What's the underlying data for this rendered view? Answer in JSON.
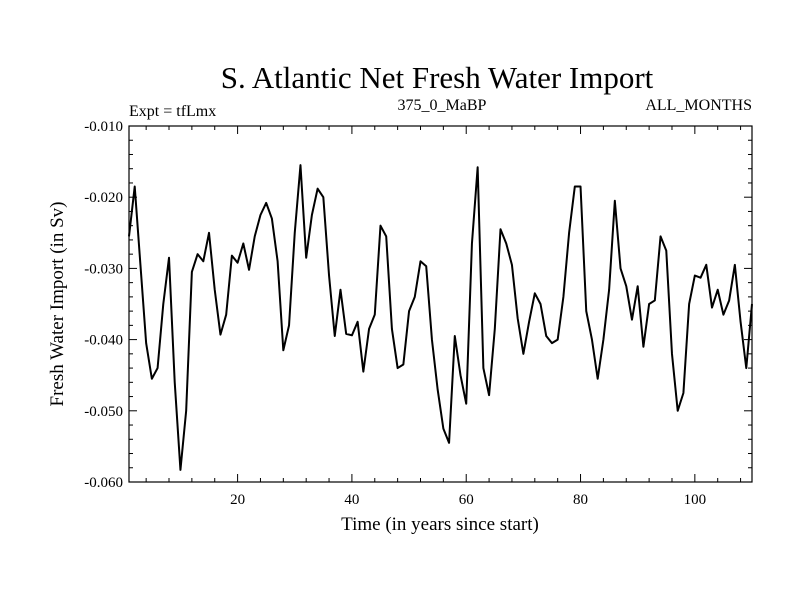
{
  "chart_data": {
    "type": "line",
    "title": "S. Atlantic Net Fresh Water Import",
    "subtitle_left": "Expt = tfLmx",
    "subtitle_center": "375_0_MaBP",
    "subtitle_right": "ALL_MONTHS",
    "xlabel": "Time (in years since start)",
    "ylabel": "Fresh Water Import (in Sv)",
    "xlim": [
      1,
      110
    ],
    "ylim": [
      -0.06,
      -0.01
    ],
    "xticks": [
      20,
      40,
      60,
      80,
      100
    ],
    "xtick_labels": [
      "20",
      "40",
      "60",
      "80",
      "100"
    ],
    "yticks": [
      -0.06,
      -0.05,
      -0.04,
      -0.03,
      -0.02,
      -0.01
    ],
    "ytick_labels": [
      "-0.060",
      "-0.050",
      "-0.040",
      "-0.030",
      "-0.020",
      "-0.010"
    ],
    "grid": false,
    "series": [
      {
        "name": "Net Fresh Water Import",
        "color": "#000000",
        "x": [
          1,
          2,
          3,
          4,
          5,
          6,
          7,
          8,
          9,
          10,
          11,
          12,
          13,
          14,
          15,
          16,
          17,
          18,
          19,
          20,
          21,
          22,
          23,
          24,
          25,
          26,
          27,
          28,
          29,
          30,
          31,
          32,
          33,
          34,
          35,
          36,
          37,
          38,
          39,
          40,
          41,
          42,
          43,
          44,
          45,
          46,
          47,
          48,
          49,
          50,
          51,
          52,
          53,
          54,
          55,
          56,
          57,
          58,
          59,
          60,
          61,
          62,
          63,
          64,
          65,
          66,
          67,
          68,
          69,
          70,
          71,
          72,
          73,
          74,
          75,
          76,
          77,
          78,
          79,
          80,
          81,
          82,
          83,
          84,
          85,
          86,
          87,
          88,
          89,
          90,
          91,
          92,
          93,
          94,
          95,
          96,
          97,
          98,
          99,
          100,
          101,
          102,
          103,
          104,
          105,
          106,
          107,
          108,
          109,
          110
        ],
        "values": [
          -0.0255,
          -0.0185,
          -0.0295,
          -0.0405,
          -0.0455,
          -0.044,
          -0.035,
          -0.0285,
          -0.046,
          -0.0583,
          -0.05,
          -0.0305,
          -0.028,
          -0.029,
          -0.025,
          -0.033,
          -0.0393,
          -0.0365,
          -0.0282,
          -0.0292,
          -0.0265,
          -0.0302,
          -0.0255,
          -0.0225,
          -0.0208,
          -0.023,
          -0.029,
          -0.0415,
          -0.038,
          -0.025,
          -0.0155,
          -0.0285,
          -0.0225,
          -0.0188,
          -0.02,
          -0.031,
          -0.0395,
          -0.033,
          -0.0392,
          -0.0394,
          -0.0375,
          -0.0445,
          -0.0385,
          -0.0365,
          -0.024,
          -0.0255,
          -0.0385,
          -0.044,
          -0.0435,
          -0.036,
          -0.034,
          -0.029,
          -0.0297,
          -0.04,
          -0.047,
          -0.0525,
          -0.0545,
          -0.0395,
          -0.045,
          -0.049,
          -0.0265,
          -0.0158,
          -0.044,
          -0.0478,
          -0.0385,
          -0.0245,
          -0.0265,
          -0.0295,
          -0.037,
          -0.042,
          -0.0375,
          -0.0335,
          -0.035,
          -0.0395,
          -0.0405,
          -0.04,
          -0.034,
          -0.025,
          -0.0185,
          -0.0185,
          -0.036,
          -0.04,
          -0.0455,
          -0.04,
          -0.033,
          -0.0205,
          -0.03,
          -0.0325,
          -0.0372,
          -0.0325,
          -0.041,
          -0.035,
          -0.0345,
          -0.0255,
          -0.0275,
          -0.042,
          -0.05,
          -0.0475,
          -0.035,
          -0.031,
          -0.0313,
          -0.0295,
          -0.0355,
          -0.033,
          -0.0365,
          -0.0345,
          -0.0295,
          -0.0375,
          -0.044,
          -0.035
        ]
      }
    ]
  }
}
